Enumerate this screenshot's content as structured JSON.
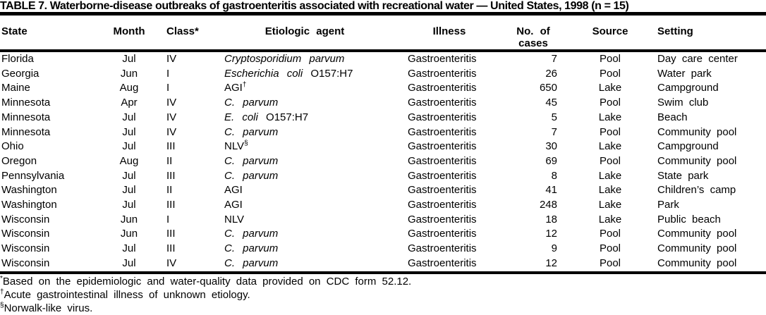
{
  "page": {
    "background_color": "#ffffff",
    "text_color": "#000000",
    "rule_color": "#000000"
  },
  "table": {
    "title": "TABLE 7. Waterborne-disease outbreaks of gastroenteritis associated with recreational water — United States, 1998 (n = 15)",
    "columns": [
      {
        "key": "state",
        "label": "State"
      },
      {
        "key": "month",
        "label": "Month"
      },
      {
        "key": "class",
        "label": "Class*"
      },
      {
        "key": "agent",
        "label": "Etiologic agent"
      },
      {
        "key": "illness",
        "label": "Illness"
      },
      {
        "key": "cases",
        "label": "No. of\ncases"
      },
      {
        "key": "source",
        "label": "Source"
      },
      {
        "key": "setting",
        "label": "Setting"
      }
    ],
    "rows": [
      {
        "state": "Florida",
        "month": "Jul",
        "class": "IV",
        "agent_italic": "Cryptosporidium parvum",
        "agent_plain": "",
        "agent_sup": "",
        "illness": "Gastroenteritis",
        "cases": "7",
        "source": "Pool",
        "setting": "Day care center"
      },
      {
        "state": "Georgia",
        "month": "Jun",
        "class": "I",
        "agent_italic": "Escherichia coli",
        "agent_plain": "O157:H7",
        "agent_sup": "",
        "illness": "Gastroenteritis",
        "cases": "26",
        "source": "Pool",
        "setting": "Water park"
      },
      {
        "state": "Maine",
        "month": "Aug",
        "class": "I",
        "agent_italic": "",
        "agent_plain": "AGI",
        "agent_sup": "†",
        "illness": "Gastroenteritis",
        "cases": "650",
        "source": "Lake",
        "setting": "Campground"
      },
      {
        "state": "Minnesota",
        "month": "Apr",
        "class": "IV",
        "agent_italic": "C. parvum",
        "agent_plain": "",
        "agent_sup": "",
        "illness": "Gastroenteritis",
        "cases": "45",
        "source": "Pool",
        "setting": "Swim club"
      },
      {
        "state": "Minnesota",
        "month": "Jul",
        "class": "IV",
        "agent_italic": "E. coli",
        "agent_plain": "O157:H7",
        "agent_sup": "",
        "illness": "Gastroenteritis",
        "cases": "5",
        "source": "Lake",
        "setting": "Beach"
      },
      {
        "state": "Minnesota",
        "month": "Jul",
        "class": "IV",
        "agent_italic": "C. parvum",
        "agent_plain": "",
        "agent_sup": "",
        "illness": "Gastroenteritis",
        "cases": "7",
        "source": "Pool",
        "setting": "Community pool"
      },
      {
        "state": "Ohio",
        "month": "Jul",
        "class": "III",
        "agent_italic": "",
        "agent_plain": "NLV",
        "agent_sup": "§",
        "illness": "Gastroenteritis",
        "cases": "30",
        "source": "Lake",
        "setting": "Campground"
      },
      {
        "state": "Oregon",
        "month": "Aug",
        "class": "II",
        "agent_italic": "C. parvum",
        "agent_plain": "",
        "agent_sup": "",
        "illness": "Gastroenteritis",
        "cases": "69",
        "source": "Pool",
        "setting": "Community pool"
      },
      {
        "state": "Pennsylvania",
        "month": "Jul",
        "class": "III",
        "agent_italic": "C. parvum",
        "agent_plain": "",
        "agent_sup": "",
        "illness": "Gastroenteritis",
        "cases": "8",
        "source": "Lake",
        "setting": "State park"
      },
      {
        "state": "Washington",
        "month": "Jul",
        "class": "II",
        "agent_italic": "",
        "agent_plain": "AGI",
        "agent_sup": "",
        "illness": "Gastroenteritis",
        "cases": "41",
        "source": "Lake",
        "setting": "Children’s camp"
      },
      {
        "state": "Washington",
        "month": "Jul",
        "class": "III",
        "agent_italic": "",
        "agent_plain": "AGI",
        "agent_sup": "",
        "illness": "Gastroenteritis",
        "cases": "248",
        "source": "Lake",
        "setting": "Park"
      },
      {
        "state": "Wisconsin",
        "month": "Jun",
        "class": "I",
        "agent_italic": "",
        "agent_plain": "NLV",
        "agent_sup": "",
        "illness": "Gastroenteritis",
        "cases": "18",
        "source": "Lake",
        "setting": "Public beach"
      },
      {
        "state": "Wisconsin",
        "month": "Jun",
        "class": "III",
        "agent_italic": "C. parvum",
        "agent_plain": "",
        "agent_sup": "",
        "illness": "Gastroenteritis",
        "cases": "12",
        "source": "Pool",
        "setting": "Community pool"
      },
      {
        "state": "Wisconsin",
        "month": "Jul",
        "class": "III",
        "agent_italic": "C. parvum",
        "agent_plain": "",
        "agent_sup": "",
        "illness": "Gastroenteritis",
        "cases": "9",
        "source": "Pool",
        "setting": "Community pool"
      },
      {
        "state": "Wisconsin",
        "month": "Jul",
        "class": "IV",
        "agent_italic": "C. parvum",
        "agent_plain": "",
        "agent_sup": "",
        "illness": "Gastroenteritis",
        "cases": "12",
        "source": "Pool",
        "setting": "Community pool"
      }
    ],
    "footnotes": [
      {
        "symbol": "*",
        "text": "Based on the epidemiologic and water-quality data provided on CDC form 52.12."
      },
      {
        "symbol": "†",
        "text": "Acute gastrointestinal illness of unknown etiology."
      },
      {
        "symbol": "§",
        "text": "Norwalk-like virus."
      }
    ]
  }
}
